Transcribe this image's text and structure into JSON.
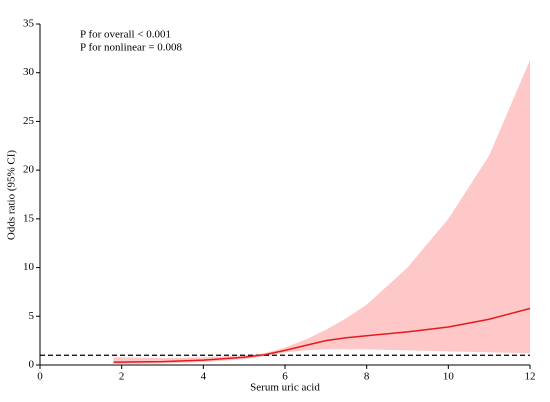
{
  "chart_data": {
    "type": "line",
    "annotations": [
      "P for overall < 0.001",
      "P for nonlinear = 0.008"
    ],
    "x_label": "Serum uric acid",
    "y_label": "Odds ratio (95% CI)",
    "x": [
      1.8,
      2,
      3,
      4,
      5,
      5.5,
      6,
      6.5,
      7,
      7.5,
      8,
      9,
      10,
      11,
      12
    ],
    "values": [
      0.3,
      0.3,
      0.35,
      0.5,
      0.8,
      1.05,
      1.5,
      2.0,
      2.5,
      2.8,
      3.0,
      3.4,
      3.9,
      4.7,
      5.8
    ],
    "ci_lower": [
      0.1,
      0.1,
      0.15,
      0.3,
      0.6,
      0.9,
      1.3,
      1.5,
      1.6,
      1.6,
      1.6,
      1.5,
      1.4,
      1.3,
      1.2
    ],
    "ci_upper": [
      0.8,
      0.8,
      0.7,
      0.8,
      1.0,
      1.2,
      1.8,
      2.6,
      3.6,
      4.8,
      6.2,
      10.0,
      15.0,
      21.5,
      31.3
    ],
    "color": "#e41a1c",
    "band_color": "#ffc8c8",
    "reference_line": 1,
    "xlim": [
      0,
      12
    ],
    "xticks": [
      0,
      2,
      4,
      6,
      8,
      10,
      12
    ],
    "ylim": [
      0,
      35
    ],
    "yticks": [
      0,
      5,
      10,
      15,
      20,
      25,
      30,
      35
    ]
  }
}
